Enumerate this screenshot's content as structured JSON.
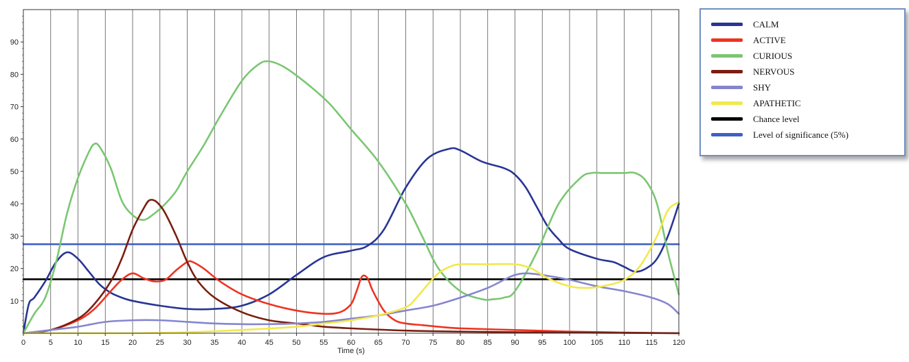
{
  "chart_data": {
    "type": "line",
    "title": "",
    "xlabel": "Time (s)",
    "ylabel": "",
    "xlim": [
      0,
      120
    ],
    "ylim": [
      0,
      100
    ],
    "x_ticks": [
      0,
      5,
      10,
      15,
      20,
      25,
      30,
      35,
      40,
      45,
      50,
      55,
      60,
      65,
      70,
      75,
      80,
      85,
      90,
      95,
      100,
      105,
      110,
      115,
      120
    ],
    "y_ticks": [
      10,
      20,
      30,
      40,
      50,
      60,
      70,
      80,
      90
    ],
    "grid": "vertical",
    "legend_position": "right",
    "series": [
      {
        "name": "CALM",
        "color": "#283593",
        "x": [
          0,
          1,
          2,
          4,
          6,
          8,
          10,
          12,
          14,
          16,
          18,
          20,
          25,
          30,
          35,
          40,
          45,
          50,
          55,
          60,
          63,
          66,
          70,
          74,
          78,
          80,
          84,
          88,
          90,
          92,
          94,
          96,
          98,
          100,
          105,
          108,
          110,
          112,
          114,
          116,
          118,
          120
        ],
        "y": [
          0,
          9,
          11,
          16,
          22,
          25,
          23,
          19,
          15,
          12.5,
          11,
          10,
          8.5,
          7.5,
          7.5,
          8.5,
          12,
          18,
          23.5,
          25.5,
          27,
          32,
          45,
          54,
          57,
          56.5,
          53,
          51,
          49,
          45,
          39,
          33,
          29,
          26,
          23,
          22,
          20.5,
          19,
          20,
          23,
          30,
          40
        ]
      },
      {
        "name": "ACTIVE",
        "color": "#ee3322",
        "x": [
          0,
          5,
          10,
          13,
          16,
          18,
          20,
          22,
          24,
          26,
          28,
          30,
          31,
          33,
          36,
          40,
          45,
          50,
          55,
          58,
          60,
          61,
          62,
          63,
          64,
          66,
          68,
          70,
          73,
          76,
          80,
          90,
          100,
          110,
          120
        ],
        "y": [
          0,
          1,
          4,
          7.5,
          13,
          16.5,
          18.5,
          17,
          16,
          16.5,
          19.5,
          22,
          22,
          20,
          16,
          12,
          9,
          7,
          6,
          6.5,
          9,
          13,
          17.5,
          17,
          13,
          7,
          4,
          3,
          2.5,
          2,
          1.5,
          1,
          0.5,
          0.2,
          0
        ]
      },
      {
        "name": "CURIOUS",
        "color": "#7ac672",
        "x": [
          0,
          2,
          4,
          6,
          8,
          10,
          12,
          13,
          14,
          16,
          18,
          20,
          22,
          24,
          26,
          28,
          30,
          33,
          36,
          40,
          43,
          45,
          48,
          52,
          56,
          60,
          65,
          70,
          73,
          76,
          80,
          84,
          86,
          88,
          90,
          94,
          98,
          102,
          104,
          106,
          108,
          110,
          112,
          114,
          116,
          118,
          120
        ],
        "y": [
          0,
          6,
          11,
          22,
          37,
          48,
          56,
          58.5,
          57.5,
          51,
          41,
          36.5,
          35,
          37,
          40,
          44,
          50,
          58,
          67,
          78,
          83,
          84,
          82,
          77,
          71,
          63,
          53,
          40,
          30,
          20,
          13,
          10.5,
          10.5,
          11,
          13,
          25,
          40,
          48,
          49.5,
          49.5,
          49.5,
          49.5,
          49.5,
          47,
          40,
          25,
          12
        ]
      },
      {
        "name": "NERVOUS",
        "color": "#7a1e10",
        "x": [
          0,
          5,
          10,
          13,
          16,
          18,
          20,
          22,
          23,
          24,
          25,
          26,
          28,
          30,
          32,
          35,
          40,
          45,
          50,
          55,
          60,
          70,
          80,
          90,
          100,
          110,
          120
        ],
        "y": [
          0,
          1,
          4.5,
          9,
          16,
          23,
          32,
          38.5,
          41,
          41,
          39.5,
          37,
          30,
          22,
          16,
          11,
          6.5,
          4,
          3,
          2,
          1.5,
          0.8,
          0.5,
          0.3,
          0.2,
          0.1,
          0
        ]
      },
      {
        "name": "SHY",
        "color": "#8585cf",
        "x": [
          0,
          5,
          10,
          15,
          20,
          25,
          30,
          35,
          40,
          45,
          50,
          55,
          60,
          65,
          70,
          75,
          80,
          85,
          88,
          90,
          92,
          95,
          100,
          105,
          110,
          115,
          118,
          120
        ],
        "y": [
          0,
          1,
          2,
          3.5,
          4,
          4,
          3.5,
          3,
          2.8,
          2.8,
          3,
          3.5,
          4.5,
          5.5,
          7,
          8.5,
          11,
          14,
          16.5,
          18,
          18.5,
          18,
          16.5,
          14.5,
          13,
          11,
          9,
          6
        ]
      },
      {
        "name": "APATHETIC",
        "color": "#f2e84a",
        "x": [
          0,
          10,
          20,
          30,
          40,
          50,
          55,
          60,
          65,
          70,
          72,
          74,
          76,
          78,
          80,
          85,
          90,
          93,
          96,
          100,
          103,
          106,
          110,
          113,
          116,
          118,
          120
        ],
        "y": [
          0,
          0,
          0,
          0.3,
          1,
          2,
          3,
          4,
          5.5,
          8,
          11,
          15,
          18.5,
          20.5,
          21.3,
          21.3,
          21.3,
          20,
          17,
          14.5,
          14,
          14.5,
          16.5,
          21,
          30,
          38,
          40.5
        ]
      },
      {
        "name": "Chance level",
        "color": "#000000",
        "x": [
          0,
          120
        ],
        "y": [
          16.67,
          16.67
        ]
      },
      {
        "name": "Level of significance (5%)",
        "color": "#3f5fc4",
        "x": [
          0,
          120
        ],
        "y": [
          27.5,
          27.5
        ]
      }
    ]
  }
}
